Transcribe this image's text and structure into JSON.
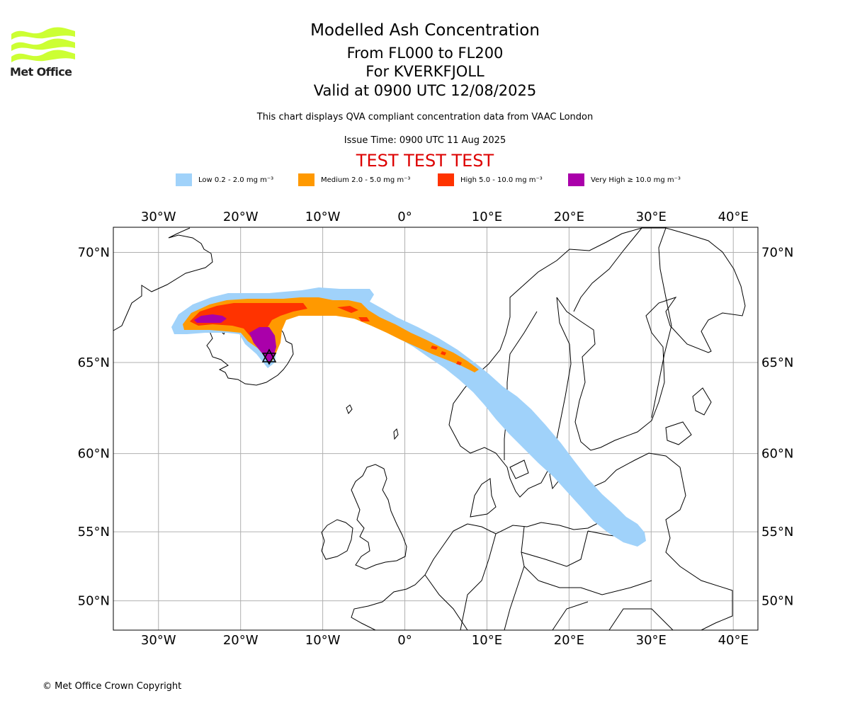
{
  "logo": {
    "text": "Met Office",
    "icon": "met-office-wave-logo-icon",
    "color": "#ccff33"
  },
  "titles": {
    "main": "Modelled Ash Concentration",
    "levels": "From FL000 to FL200",
    "volcano": "For KVERKFJOLL",
    "valid": "Valid at 0900 UTC 12/08/2025"
  },
  "notes": {
    "qva": "This chart displays QVA compliant concentration data from VAAC London",
    "issue": "Issue Time: 0900 UTC 11 Aug 2025",
    "test": "TEST TEST TEST",
    "test_color": "#dd0000"
  },
  "legend": [
    {
      "label": "Low 0.2 - 2.0 mg m⁻³",
      "color": "#a0d2fa"
    },
    {
      "label": "Medium 2.0 - 5.0 mg m⁻³",
      "color": "#ff9900"
    },
    {
      "label": "High 5.0 - 10.0 mg m⁻³",
      "color": "#ff3300"
    },
    {
      "label": "Very High  ≥  10.0 mg m⁻³",
      "color": "#aa00aa"
    }
  ],
  "map": {
    "lon_ticks": [
      "30°W",
      "20°W",
      "10°W",
      "0°",
      "10°E",
      "20°E",
      "30°E",
      "40°E"
    ],
    "lon_values": [
      -30,
      -20,
      -10,
      0,
      10,
      20,
      30,
      40
    ],
    "lat_ticks": [
      "70°N",
      "65°N",
      "60°N",
      "55°N",
      "50°N"
    ],
    "lat_values": [
      70,
      65,
      60,
      55,
      50
    ],
    "lon_range": [
      -35.5,
      43
    ],
    "lat_range": [
      47.7,
      71
    ],
    "grid": true,
    "volcano_marker": "volcano-triangle-icon",
    "volcano_lon": -16.7,
    "volcano_lat": 64.7
  },
  "copyright": "© Met Office Crown Copyright"
}
